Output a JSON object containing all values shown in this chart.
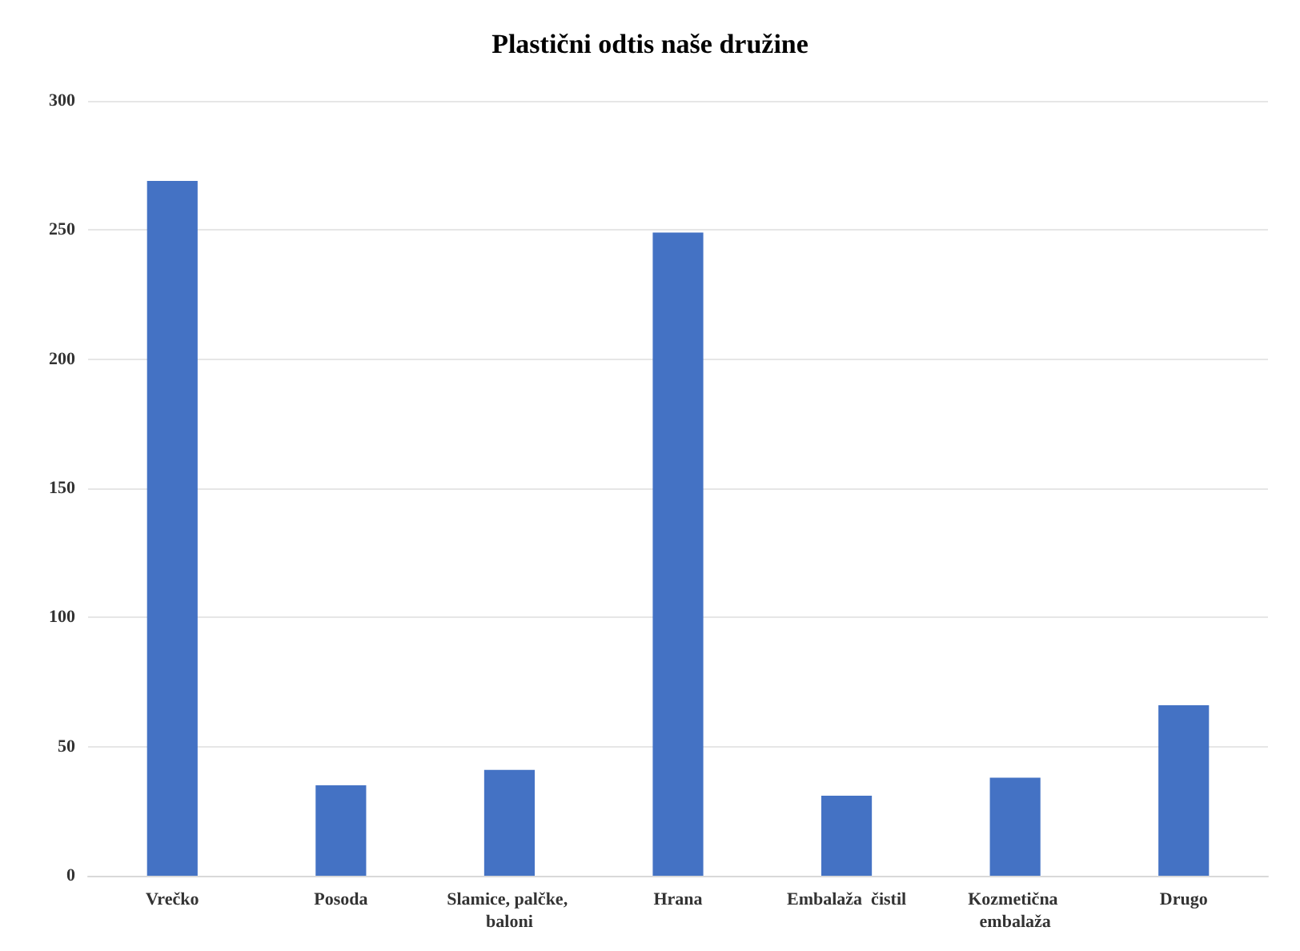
{
  "chart_data": {
    "type": "bar",
    "title": "Plastični odtis naše družine",
    "categories": [
      "Vrečko",
      "Posoda",
      "Slamice, palčke, baloni",
      "Hrana",
      "Embalaža  čistil",
      "Kozmetična embalaža",
      "Drugo"
    ],
    "values": [
      269,
      35,
      41,
      249,
      31,
      38,
      66
    ],
    "color": "#4472c4",
    "ylim": [
      0,
      300
    ],
    "yticks": [
      0,
      50,
      100,
      150,
      200,
      250,
      300
    ],
    "grid": "y"
  }
}
